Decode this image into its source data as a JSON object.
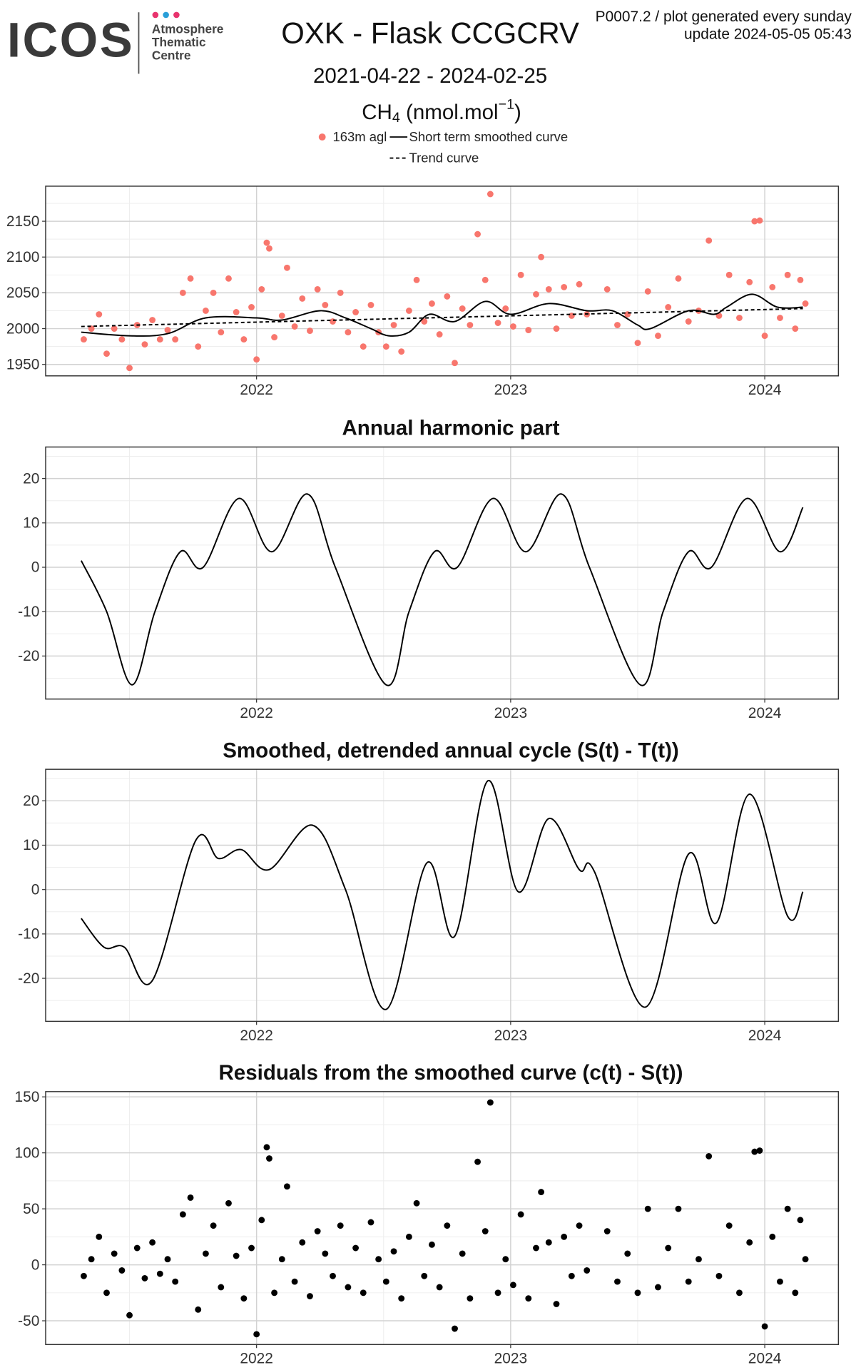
{
  "header": {
    "logo": "ICOS",
    "logo_sub": [
      "Atmosphere",
      "Thematic",
      "Centre"
    ],
    "title": "OXK - Flask CCGCRV",
    "subtitle": "2021-04-22 - 2024-02-25",
    "species": [
      "CH",
      "4",
      " (nmol.mol",
      "−1",
      ")"
    ],
    "note_lines": [
      "P0007.2 / plot generated every sunday",
      "update  2024-05-05 05:43"
    ]
  },
  "chart_data": [
    {
      "type": "scatter",
      "xlim": [
        2021.17,
        2024.29
      ],
      "xticks": [
        2022,
        2023,
        2024
      ],
      "xminorticks": [
        2021.5,
        2022.5,
        2023.5
      ],
      "ylim": [
        1934,
        2199
      ],
      "yticks": [
        1950,
        2000,
        2050,
        2100,
        2150
      ],
      "yminorticks": [
        1975,
        2025,
        2075,
        2125,
        2175
      ],
      "grid": true,
      "series": [
        {
          "name": "163m agl",
          "mode": "markers",
          "color": "#f8766d",
          "x": [
            2021.32,
            2021.35,
            2021.38,
            2021.41,
            2021.44,
            2021.47,
            2021.5,
            2021.53,
            2021.56,
            2021.59,
            2021.62,
            2021.65,
            2021.68,
            2021.71,
            2021.74,
            2021.77,
            2021.8,
            2021.83,
            2021.86,
            2021.89,
            2021.92,
            2021.95,
            2021.98,
            2022.0,
            2022.02,
            2022.04,
            2022.05,
            2022.07,
            2022.1,
            2022.12,
            2022.15,
            2022.18,
            2022.21,
            2022.24,
            2022.27,
            2022.3,
            2022.33,
            2022.36,
            2022.39,
            2022.42,
            2022.45,
            2022.48,
            2022.51,
            2022.54,
            2022.57,
            2022.6,
            2022.63,
            2022.66,
            2022.69,
            2022.72,
            2022.75,
            2022.78,
            2022.81,
            2022.84,
            2022.87,
            2022.9,
            2022.92,
            2022.95,
            2022.98,
            2023.01,
            2023.04,
            2023.07,
            2023.1,
            2023.12,
            2023.15,
            2023.18,
            2023.21,
            2023.24,
            2023.27,
            2023.3,
            2023.38,
            2023.42,
            2023.46,
            2023.5,
            2023.54,
            2023.58,
            2023.62,
            2023.66,
            2023.7,
            2023.74,
            2023.78,
            2023.82,
            2023.86,
            2023.9,
            2023.94,
            2023.96,
            2023.98,
            2024.0,
            2024.03,
            2024.06,
            2024.09,
            2024.12,
            2024.14,
            2024.16
          ],
          "values": [
            1985,
            2000,
            2020,
            1965,
            2000,
            1985,
            1945,
            2005,
            1978,
            2012,
            1985,
            1998,
            1985,
            2050,
            2070,
            1975,
            2025,
            2050,
            1995,
            2070,
            2023,
            1985,
            2030,
            1957,
            2055,
            2120,
            2112,
            1988,
            2018,
            2085,
            2003,
            2042,
            1997,
            2055,
            2033,
            2010,
            2050,
            1995,
            2023,
            1975,
            2033,
            1995,
            1975,
            2005,
            1968,
            2025,
            2068,
            2010,
            2035,
            1992,
            2045,
            1952,
            2028,
            2005,
            2132,
            2068,
            2188,
            2008,
            2028,
            2003,
            2075,
            1998,
            2048,
            2100,
            2055,
            2000,
            2058,
            2018,
            2062,
            2020,
            2055,
            2005,
            2020,
            1980,
            2052,
            1990,
            2030,
            2070,
            2010,
            2025,
            2123,
            2018,
            2075,
            2015,
            2065,
            2150,
            2151,
            1990,
            2058,
            2015,
            2075,
            2000,
            2068,
            2035
          ]
        },
        {
          "name": "Short term smoothed curve",
          "mode": "lines",
          "color": "#000000",
          "dash": "none",
          "x": [
            2021.31,
            2021.5,
            2021.65,
            2021.8,
            2022.0,
            2022.1,
            2022.25,
            2022.35,
            2022.45,
            2022.52,
            2022.6,
            2022.68,
            2022.78,
            2022.9,
            2023.0,
            2023.15,
            2023.3,
            2023.4,
            2023.5,
            2023.55,
            2023.7,
            2023.8,
            2023.85,
            2023.95,
            2024.05,
            2024.15
          ],
          "values": [
            1995,
            1990,
            1993,
            2015,
            2015,
            2012,
            2025,
            2015,
            2000,
            1990,
            1995,
            2020,
            2010,
            2038,
            2020,
            2035,
            2025,
            2025,
            2005,
            2000,
            2025,
            2020,
            2030,
            2048,
            2030,
            2030
          ]
        },
        {
          "name": "Trend curve",
          "mode": "lines",
          "color": "#000000",
          "dash": "4 3",
          "x": [
            2021.31,
            2024.15
          ],
          "values": [
            2003,
            2028
          ]
        }
      ]
    },
    {
      "type": "line",
      "title": "Annual harmonic part",
      "xlim": [
        2021.17,
        2024.29
      ],
      "xticks": [
        2022,
        2023,
        2024
      ],
      "xminorticks": [
        2021.5,
        2022.5,
        2023.5
      ],
      "ylim": [
        -29.7,
        27.1
      ],
      "yticks": [
        -20,
        -10,
        0,
        10,
        20
      ],
      "yminorticks": [
        -25,
        -15,
        -5,
        5,
        15,
        25
      ],
      "grid": true,
      "series": [
        {
          "mode": "lines",
          "color": "#000000",
          "x": [
            2021.31,
            2021.41,
            2021.51,
            2021.6,
            2021.7,
            2021.79,
            2021.93,
            2022.06,
            2022.2,
            2022.31,
            2022.51,
            2022.6,
            2022.7,
            2022.79,
            2022.93,
            2023.06,
            2023.2,
            2023.31,
            2023.51,
            2023.6,
            2023.7,
            2023.79,
            2023.93,
            2024.06,
            2024.15
          ],
          "values": [
            1.5,
            -10,
            -26.5,
            -10,
            3.5,
            0,
            15.5,
            3.5,
            16.5,
            0,
            -26.5,
            -10,
            3.5,
            0,
            15.5,
            3.5,
            16.5,
            0,
            -26.5,
            -10,
            3.5,
            0,
            15.5,
            3.5,
            13.5
          ]
        }
      ]
    },
    {
      "type": "line",
      "title": "Smoothed, detrended annual cycle (S(t) - T(t))",
      "xlim": [
        2021.17,
        2024.29
      ],
      "xticks": [
        2022,
        2023,
        2024
      ],
      "xminorticks": [
        2021.5,
        2022.5,
        2023.5
      ],
      "ylim": [
        -29.7,
        27.1
      ],
      "yticks": [
        -20,
        -10,
        0,
        10,
        20
      ],
      "yminorticks": [
        -25,
        -15,
        -5,
        5,
        15,
        25
      ],
      "grid": true,
      "series": [
        {
          "mode": "lines",
          "color": "#000000",
          "x": [
            2021.31,
            2021.4,
            2021.48,
            2021.59,
            2021.76,
            2021.85,
            2021.94,
            2022.05,
            2022.22,
            2022.35,
            2022.51,
            2022.67,
            2022.78,
            2022.91,
            2023.03,
            2023.15,
            2023.27,
            2023.33,
            2023.53,
            2023.7,
            2023.81,
            2023.94,
            2024.09,
            2024.15
          ],
          "values": [
            -6.5,
            -13,
            -13,
            -20.5,
            11,
            7,
            9,
            4.5,
            14.5,
            0,
            -27,
            6,
            -10.5,
            24.5,
            -0.5,
            16,
            4.5,
            4,
            -26.5,
            8,
            -7.5,
            21.5,
            -6,
            -0.5
          ]
        }
      ]
    },
    {
      "type": "scatter",
      "title": "Residuals from the smoothed curve (c(t) - S(t))",
      "xlim": [
        2021.17,
        2024.29
      ],
      "xticks": [
        2022,
        2023,
        2024
      ],
      "xminorticks": [
        2021.5,
        2022.5,
        2023.5
      ],
      "ylim": [
        -71.2,
        154.7
      ],
      "yticks": [
        -50,
        0,
        50,
        100,
        150
      ],
      "yminorticks": [
        -25,
        25,
        75,
        125
      ],
      "grid": true,
      "series": [
        {
          "mode": "markers",
          "color": "#000000",
          "x": [
            2021.32,
            2021.35,
            2021.38,
            2021.41,
            2021.44,
            2021.47,
            2021.5,
            2021.53,
            2021.56,
            2021.59,
            2021.62,
            2021.65,
            2021.68,
            2021.71,
            2021.74,
            2021.77,
            2021.8,
            2021.83,
            2021.86,
            2021.89,
            2021.92,
            2021.95,
            2021.98,
            2022.0,
            2022.02,
            2022.04,
            2022.05,
            2022.07,
            2022.1,
            2022.12,
            2022.15,
            2022.18,
            2022.21,
            2022.24,
            2022.27,
            2022.3,
            2022.33,
            2022.36,
            2022.39,
            2022.42,
            2022.45,
            2022.48,
            2022.51,
            2022.54,
            2022.57,
            2022.6,
            2022.63,
            2022.66,
            2022.69,
            2022.72,
            2022.75,
            2022.78,
            2022.81,
            2022.84,
            2022.87,
            2022.9,
            2022.92,
            2022.95,
            2022.98,
            2023.01,
            2023.04,
            2023.07,
            2023.1,
            2023.12,
            2023.15,
            2023.18,
            2023.21,
            2023.24,
            2023.27,
            2023.3,
            2023.38,
            2023.42,
            2023.46,
            2023.5,
            2023.54,
            2023.58,
            2023.62,
            2023.66,
            2023.7,
            2023.74,
            2023.78,
            2023.82,
            2023.86,
            2023.9,
            2023.94,
            2023.96,
            2023.98,
            2024.0,
            2024.03,
            2024.06,
            2024.09,
            2024.12,
            2024.14,
            2024.16
          ],
          "values": [
            -10,
            5,
            25,
            -25,
            10,
            -5,
            -45,
            15,
            -12,
            20,
            -8,
            5,
            -15,
            45,
            60,
            -40,
            10,
            35,
            -20,
            55,
            8,
            -30,
            15,
            -62,
            40,
            105,
            95,
            -25,
            5,
            70,
            -15,
            20,
            -28,
            30,
            10,
            -10,
            35,
            -20,
            15,
            -25,
            38,
            5,
            -15,
            12,
            -30,
            25,
            55,
            -10,
            18,
            -20,
            35,
            -57,
            10,
            -30,
            92,
            30,
            145,
            -25,
            5,
            -18,
            45,
            -30,
            15,
            65,
            20,
            -35,
            25,
            -10,
            35,
            -5,
            30,
            -15,
            10,
            -25,
            50,
            -20,
            15,
            50,
            -15,
            5,
            97,
            -10,
            35,
            -25,
            20,
            101,
            102,
            -55,
            25,
            -15,
            50,
            -25,
            40,
            5
          ]
        }
      ]
    }
  ]
}
